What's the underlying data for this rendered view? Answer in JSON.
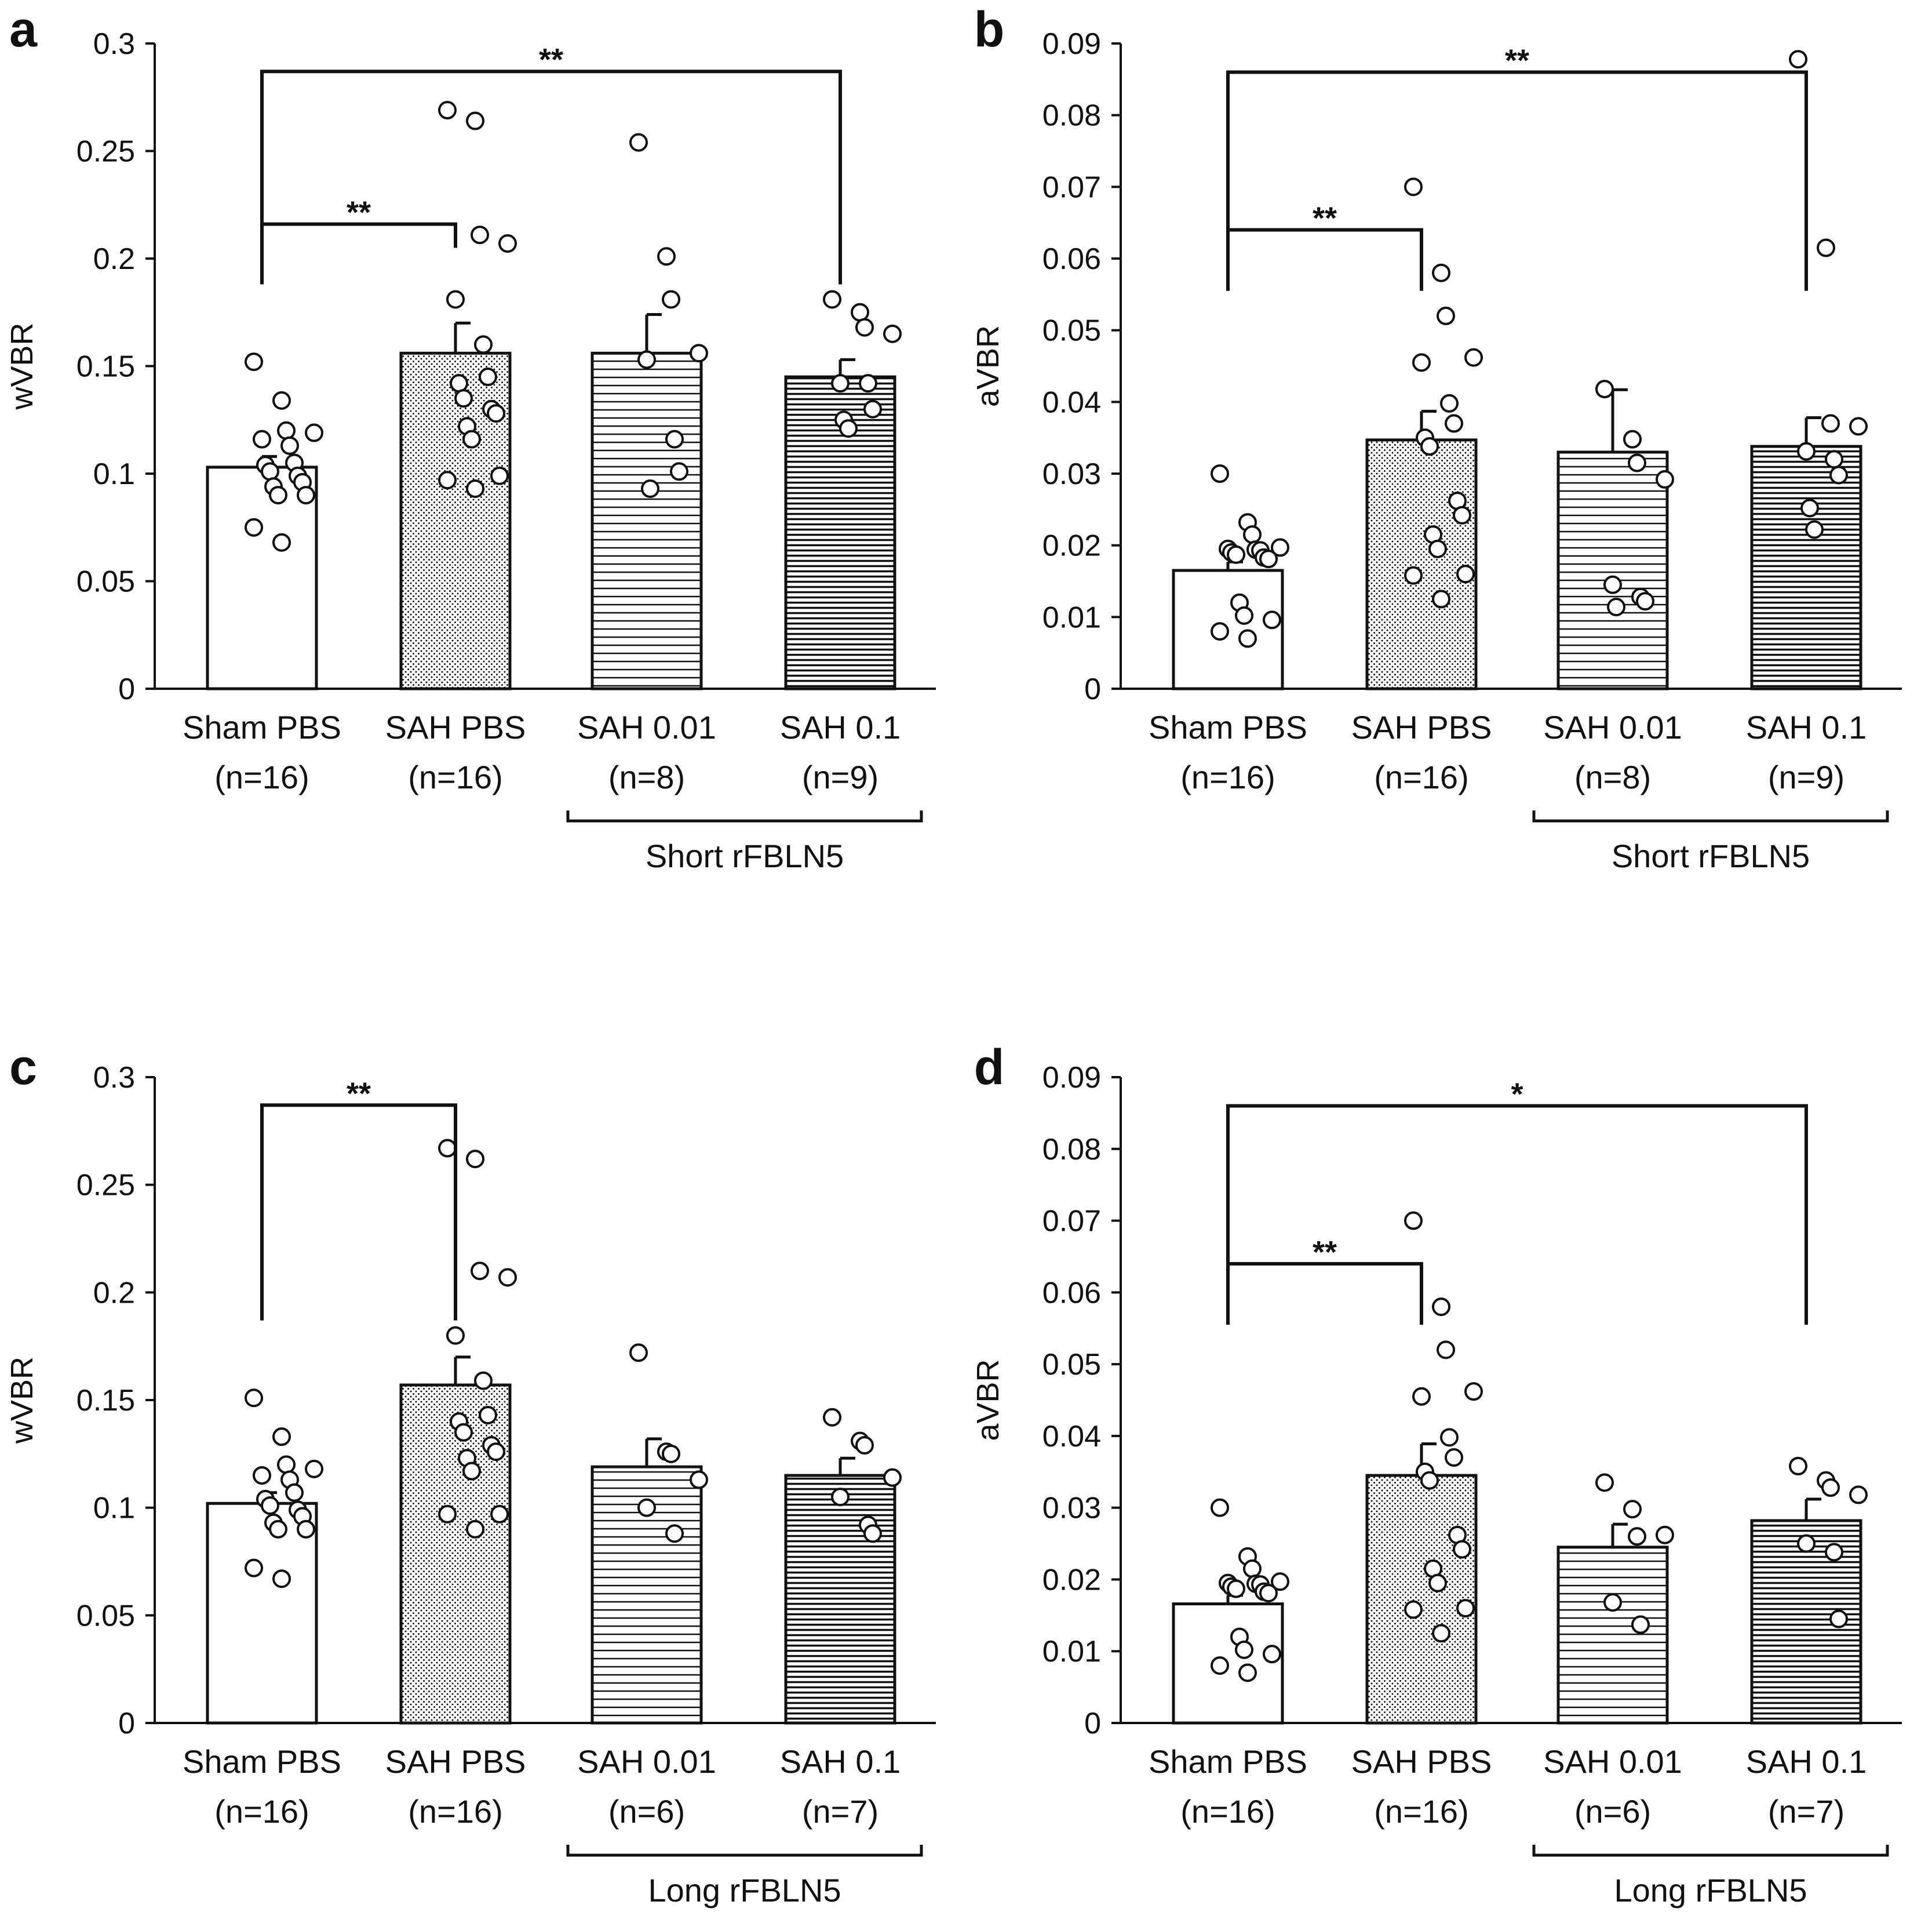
{
  "colors": {
    "ink": "#111111",
    "bar_fill": "#ffffff",
    "background": "#ffffff"
  },
  "chart_data": [
    {
      "type": "bar",
      "panel_label": "a",
      "ylabel": "wVBR",
      "ylim": [
        0,
        0.3
      ],
      "yticks": [
        "0",
        "0.05",
        "0.1",
        "0.15",
        "0.2",
        "0.25",
        "0.3"
      ],
      "ytick_values": [
        0,
        0.05,
        0.1,
        0.15,
        0.2,
        0.25,
        0.3
      ],
      "categories": [
        "Sham PBS",
        "SAH PBS",
        "SAH 0.01",
        "SAH 0.1"
      ],
      "n_labels": [
        "(n=16)",
        "(n=16)",
        "(n=8)",
        "(n=9)"
      ],
      "patterns": [
        "none",
        "dots",
        "hlines",
        "hlines-dense"
      ],
      "group_label": "Short rFBLN5",
      "values": [
        0.103,
        0.156,
        0.156,
        0.145
      ],
      "errors": [
        0.005,
        0.014,
        0.018,
        0.008
      ],
      "points": [
        [
          0.152,
          0.134,
          0.12,
          0.119,
          0.116,
          0.113,
          0.105,
          0.104,
          0.101,
          0.099,
          0.096,
          0.094,
          0.09,
          0.09,
          0.075,
          0.068
        ],
        [
          0.269,
          0.264,
          0.211,
          0.207,
          0.181,
          0.16,
          0.145,
          0.142,
          0.135,
          0.13,
          0.128,
          0.122,
          0.116,
          0.099,
          0.097,
          0.093
        ],
        [
          0.254,
          0.201,
          0.181,
          0.156,
          0.153,
          0.116,
          0.101,
          0.093
        ],
        [
          0.181,
          0.175,
          0.168,
          0.165,
          0.142,
          0.142,
          0.13,
          0.125,
          0.121
        ]
      ],
      "significance": [
        {
          "from": 0,
          "to": 1,
          "label": "**",
          "y": 0.216,
          "start": 0.188,
          "end": 0.205
        },
        {
          "from": 0,
          "to": 3,
          "label": "**",
          "y": 0.287,
          "start": 0.188,
          "end": 0.188
        }
      ]
    },
    {
      "type": "bar",
      "panel_label": "b",
      "ylabel": "aVBR",
      "ylim": [
        0,
        0.09
      ],
      "yticks": [
        "0",
        "0.01",
        "0.02",
        "0.03",
        "0.04",
        "0.05",
        "0.06",
        "0.07",
        "0.08",
        "0.09"
      ],
      "ytick_values": [
        0,
        0.01,
        0.02,
        0.03,
        0.04,
        0.05,
        0.06,
        0.07,
        0.08,
        0.09
      ],
      "categories": [
        "Sham PBS",
        "SAH PBS",
        "SAH 0.01",
        "SAH 0.1"
      ],
      "n_labels": [
        "(n=16)",
        "(n=16)",
        "(n=8)",
        "(n=9)"
      ],
      "patterns": [
        "none",
        "dots",
        "hlines",
        "hlines-dense"
      ],
      "group_label": "Short rFBLN5",
      "values": [
        0.0165,
        0.0347,
        0.033,
        0.0338
      ],
      "errors": [
        0.0012,
        0.004,
        0.0087,
        0.004
      ],
      "points": [
        [
          0.03,
          0.0232,
          0.0215,
          0.0197,
          0.0195,
          0.0194,
          0.0193,
          0.019,
          0.0187,
          0.0183,
          0.0181,
          0.012,
          0.0102,
          0.0096,
          0.008,
          0.007
        ],
        [
          0.07,
          0.058,
          0.052,
          0.0462,
          0.0455,
          0.0398,
          0.037,
          0.035,
          0.0338,
          0.0262,
          0.0242,
          0.0215,
          0.0195,
          0.016,
          0.0158,
          0.0125
        ],
        [
          0.0418,
          0.0348,
          0.0315,
          0.0292,
          0.0145,
          0.0128,
          0.0122,
          0.0114
        ],
        [
          0.0878,
          0.0615,
          0.037,
          0.0366,
          0.0331,
          0.032,
          0.0298,
          0.0252,
          0.0222
        ]
      ],
      "significance": [
        {
          "from": 0,
          "to": 1,
          "label": "**",
          "y": 0.064,
          "start": 0.0555,
          "end": 0.0555
        },
        {
          "from": 0,
          "to": 3,
          "label": "**",
          "y": 0.086,
          "start": 0.0555,
          "end": 0.0555
        }
      ]
    },
    {
      "type": "bar",
      "panel_label": "c",
      "ylabel": "wVBR",
      "ylim": [
        0,
        0.3
      ],
      "yticks": [
        "0",
        "0.05",
        "0.1",
        "0.15",
        "0.2",
        "0.25",
        "0.3"
      ],
      "ytick_values": [
        0,
        0.05,
        0.1,
        0.15,
        0.2,
        0.25,
        0.3
      ],
      "categories": [
        "Sham PBS",
        "SAH PBS",
        "SAH 0.01",
        "SAH 0.1"
      ],
      "n_labels": [
        "(n=16)",
        "(n=16)",
        "(n=6)",
        "(n=7)"
      ],
      "patterns": [
        "none",
        "dots",
        "hlines",
        "hlines-dense"
      ],
      "group_label": "Long rFBLN5",
      "values": [
        0.102,
        0.157,
        0.119,
        0.115
      ],
      "errors": [
        0.005,
        0.013,
        0.013,
        0.008
      ],
      "points": [
        [
          0.151,
          0.133,
          0.12,
          0.118,
          0.115,
          0.113,
          0.107,
          0.104,
          0.101,
          0.099,
          0.096,
          0.093,
          0.09,
          0.09,
          0.072,
          0.067
        ],
        [
          0.267,
          0.262,
          0.21,
          0.207,
          0.18,
          0.159,
          0.143,
          0.14,
          0.135,
          0.129,
          0.126,
          0.123,
          0.117,
          0.097,
          0.097,
          0.09
        ],
        [
          0.172,
          0.126,
          0.125,
          0.113,
          0.1,
          0.088
        ],
        [
          0.142,
          0.131,
          0.129,
          0.114,
          0.105,
          0.092,
          0.088
        ]
      ],
      "significance": [
        {
          "from": 0,
          "to": 1,
          "label": "**",
          "y": 0.287,
          "start": 0.187,
          "end": 0.187
        }
      ]
    },
    {
      "type": "bar",
      "panel_label": "d",
      "ylabel": "aVBR",
      "ylim": [
        0,
        0.09
      ],
      "yticks": [
        "0",
        "0.01",
        "0.02",
        "0.03",
        "0.04",
        "0.05",
        "0.06",
        "0.07",
        "0.08",
        "0.09"
      ],
      "ytick_values": [
        0,
        0.01,
        0.02,
        0.03,
        0.04,
        0.05,
        0.06,
        0.07,
        0.08,
        0.09
      ],
      "categories": [
        "Sham PBS",
        "SAH PBS",
        "SAH 0.01",
        "SAH 0.1"
      ],
      "n_labels": [
        "(n=16)",
        "(n=16)",
        "(n=6)",
        "(n=7)"
      ],
      "patterns": [
        "none",
        "dots",
        "hlines",
        "hlines-dense"
      ],
      "group_label": "Long rFBLN5",
      "values": [
        0.0166,
        0.0345,
        0.0245,
        0.0282
      ],
      "errors": [
        0.0012,
        0.0044,
        0.0032,
        0.003
      ],
      "points": [
        [
          0.03,
          0.0232,
          0.0215,
          0.0197,
          0.0195,
          0.0194,
          0.0193,
          0.019,
          0.0187,
          0.0183,
          0.0181,
          0.012,
          0.0102,
          0.0096,
          0.008,
          0.007
        ],
        [
          0.07,
          0.058,
          0.052,
          0.0462,
          0.0455,
          0.0398,
          0.037,
          0.035,
          0.0338,
          0.0262,
          0.0242,
          0.0215,
          0.0195,
          0.016,
          0.0158,
          0.0125
        ],
        [
          0.0335,
          0.0298,
          0.026,
          0.0262,
          0.0168,
          0.0137
        ],
        [
          0.0358,
          0.0338,
          0.0328,
          0.0318,
          0.025,
          0.0238,
          0.0145
        ]
      ],
      "significance": [
        {
          "from": 0,
          "to": 1,
          "label": "**",
          "y": 0.064,
          "start": 0.0555,
          "end": 0.0555
        },
        {
          "from": 0,
          "to": 3,
          "label": "*",
          "y": 0.086,
          "start": 0.0555,
          "end": 0.0555
        }
      ]
    }
  ]
}
